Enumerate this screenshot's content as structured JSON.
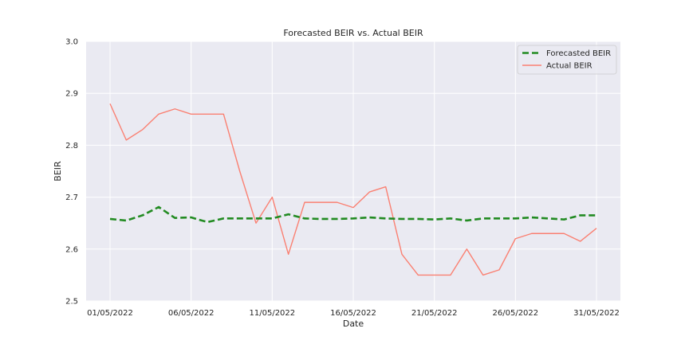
{
  "chart_data": {
    "type": "line",
    "title": "Forecasted BEIR vs. Actual BEIR",
    "xlabel": "Date",
    "ylabel": "BEIR",
    "ylim": [
      2.5,
      3.0
    ],
    "yticks": [
      "2.5",
      "2.6",
      "2.7",
      "2.8",
      "2.9",
      "3.0"
    ],
    "xticks": [
      "01/05/2022",
      "06/05/2022",
      "11/05/2022",
      "16/05/2022",
      "21/05/2022",
      "26/05/2022",
      "31/05/2022"
    ],
    "grid": true,
    "legend_position": "top-right",
    "x": [
      "01/05/2022",
      "02/05/2022",
      "03/05/2022",
      "04/05/2022",
      "05/05/2022",
      "06/05/2022",
      "07/05/2022",
      "08/05/2022",
      "09/05/2022",
      "10/05/2022",
      "11/05/2022",
      "12/05/2022",
      "13/05/2022",
      "14/05/2022",
      "15/05/2022",
      "16/05/2022",
      "17/05/2022",
      "18/05/2022",
      "19/05/2022",
      "20/05/2022",
      "21/05/2022",
      "22/05/2022",
      "23/05/2022",
      "24/05/2022",
      "25/05/2022",
      "26/05/2022",
      "27/05/2022",
      "28/05/2022",
      "29/05/2022",
      "30/05/2022",
      "31/05/2022"
    ],
    "series": [
      {
        "name": "Forecasted BEIR",
        "color": "#228b22",
        "style": "dashed",
        "values": [
          2.658,
          2.655,
          2.665,
          2.681,
          2.66,
          2.661,
          2.652,
          2.659,
          2.659,
          2.659,
          2.659,
          2.667,
          2.659,
          2.658,
          2.658,
          2.659,
          2.661,
          2.659,
          2.658,
          2.658,
          2.657,
          2.659,
          2.655,
          2.659,
          2.659,
          2.659,
          2.661,
          2.659,
          2.657,
          2.665,
          2.665
        ]
      },
      {
        "name": "Actual BEIR",
        "color": "#fa8072",
        "style": "solid",
        "values": [
          2.88,
          2.81,
          2.83,
          2.86,
          2.87,
          2.86,
          2.86,
          2.86,
          2.75,
          2.65,
          2.7,
          2.59,
          2.69,
          2.69,
          2.69,
          2.68,
          2.71,
          2.72,
          2.59,
          2.55,
          2.55,
          2.55,
          2.6,
          2.55,
          2.56,
          2.62,
          2.63,
          2.63,
          2.63,
          2.615,
          2.64
        ]
      }
    ]
  }
}
